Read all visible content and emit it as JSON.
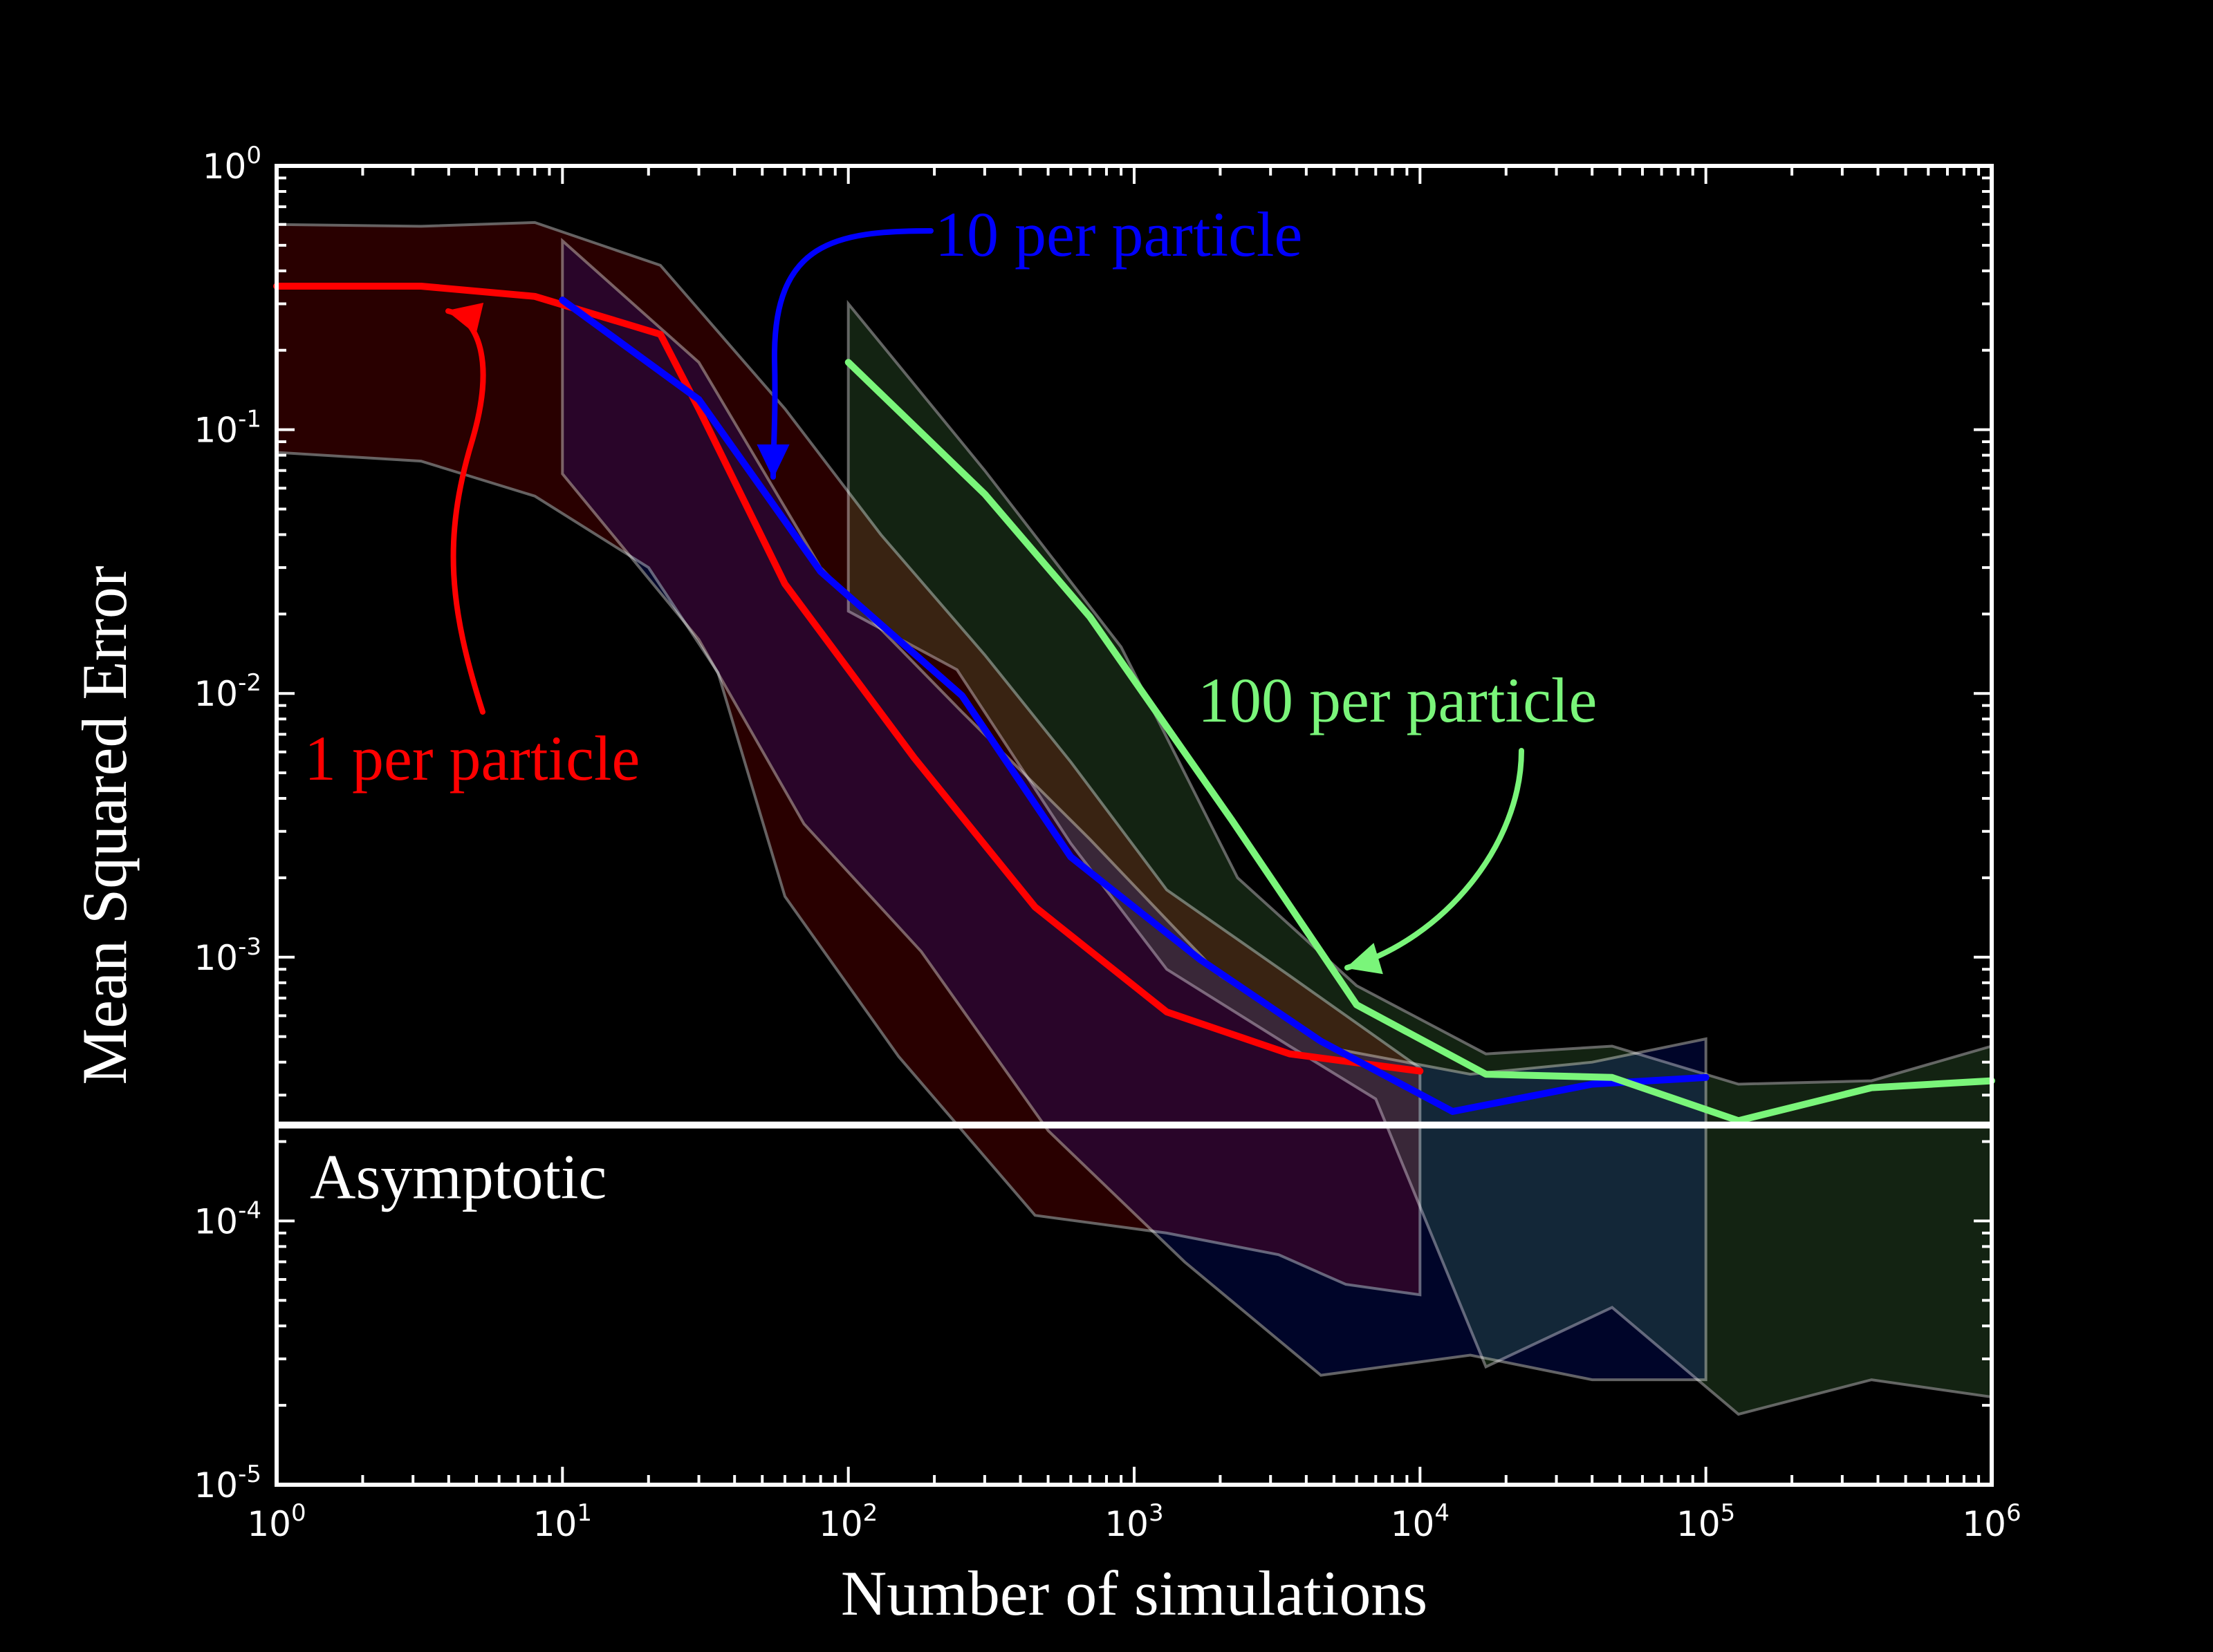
{
  "chart_data": {
    "type": "line",
    "xlabel": "Number of simulations",
    "ylabel": "Mean Squared Error",
    "xscale": "log",
    "yscale": "log",
    "xlim": [
      1,
      1000000
    ],
    "ylim": [
      1e-05,
      1
    ],
    "grid": false,
    "x_ticks": [
      {
        "base": "10",
        "exp": "0",
        "value": 1
      },
      {
        "base": "10",
        "exp": "1",
        "value": 10
      },
      {
        "base": "10",
        "exp": "2",
        "value": 100
      },
      {
        "base": "10",
        "exp": "3",
        "value": 1000
      },
      {
        "base": "10",
        "exp": "4",
        "value": 10000
      },
      {
        "base": "10",
        "exp": "5",
        "value": 100000
      },
      {
        "base": "10",
        "exp": "6",
        "value": 1000000
      }
    ],
    "y_ticks": [
      {
        "base": "10",
        "exp": "0",
        "value": 1
      },
      {
        "base": "10",
        "exp": "-1",
        "value": 0.1
      },
      {
        "base": "10",
        "exp": "-2",
        "value": 0.01
      },
      {
        "base": "10",
        "exp": "-3",
        "value": 0.001
      },
      {
        "base": "10",
        "exp": "-4",
        "value": 0.0001
      },
      {
        "base": "10",
        "exp": "-5",
        "value": 1e-05
      }
    ],
    "colors": {
      "background": "#000000",
      "axes": "#ffffff",
      "band_edge": "#7a7a7a",
      "asymptote": "#ffffff"
    },
    "bands": [
      {
        "series": "1 per particle",
        "fill": "#4a0000",
        "upper": [
          [
            1,
            0.6
          ],
          [
            3.2,
            0.59
          ],
          [
            8,
            0.61
          ],
          [
            22,
            0.42
          ],
          [
            60,
            0.12
          ],
          [
            130,
            0.04
          ],
          [
            300,
            0.014
          ],
          [
            600,
            0.0055
          ],
          [
            1300,
            0.0018
          ],
          [
            3500,
            0.00085
          ],
          [
            7000,
            0.0005
          ],
          [
            10000,
            0.00038
          ]
        ],
        "lower": [
          [
            1,
            0.082
          ],
          [
            3.2,
            0.076
          ],
          [
            8,
            0.056
          ],
          [
            20,
            0.03
          ],
          [
            35,
            0.012
          ],
          [
            60,
            0.0017
          ],
          [
            150,
            0.00042
          ],
          [
            450,
            0.000105
          ],
          [
            1300,
            9e-05
          ],
          [
            3200,
            7.45e-05
          ],
          [
            5500,
            5.75e-05
          ],
          [
            10000,
            5.25e-05
          ]
        ]
      },
      {
        "series": "10 per particle",
        "fill": "#000a4a",
        "upper": [
          [
            10,
            0.52
          ],
          [
            30,
            0.18
          ],
          [
            80,
            0.03
          ],
          [
            250,
            0.0085
          ],
          [
            700,
            0.0028
          ],
          [
            2000,
            0.00085
          ],
          [
            5000,
            0.00045
          ],
          [
            15000,
            0.00036
          ],
          [
            40000,
            0.0004
          ],
          [
            100000,
            0.00049
          ]
        ],
        "lower": [
          [
            10,
            0.068
          ],
          [
            30,
            0.016
          ],
          [
            70,
            0.0032
          ],
          [
            180,
            0.00105
          ],
          [
            500,
            0.00022
          ],
          [
            1500,
            7e-05
          ],
          [
            4500,
            2.6e-05
          ],
          [
            15000,
            3.1e-05
          ],
          [
            40000,
            2.5e-05
          ],
          [
            100000,
            2.5e-05
          ]
        ]
      },
      {
        "series": "100 per particle",
        "fill": "#224020",
        "upper": [
          [
            100,
            0.3
          ],
          [
            300,
            0.07
          ],
          [
            900,
            0.015
          ],
          [
            2300,
            0.002
          ],
          [
            6000,
            0.00078
          ],
          [
            17000,
            0.00043
          ],
          [
            47000,
            0.00046
          ],
          [
            130000,
            0.00033
          ],
          [
            380000,
            0.00034
          ],
          [
            1000000,
            0.00046
          ]
        ],
        "lower": [
          [
            100,
            0.0205
          ],
          [
            240,
            0.0123
          ],
          [
            600,
            0.0027
          ],
          [
            1300,
            0.0009
          ],
          [
            3500,
            0.00046
          ],
          [
            7000,
            0.00029
          ],
          [
            17000,
            2.8e-05
          ],
          [
            47000,
            4.7e-05
          ],
          [
            130000,
            1.85e-05
          ],
          [
            380000,
            2.5e-05
          ],
          [
            1000000,
            2.15e-05
          ]
        ]
      }
    ],
    "series": [
      {
        "name": "1 per particle",
        "color": "#ff0000",
        "x": [
          1,
          3.2,
          8,
          22,
          30,
          60,
          170,
          450,
          1300,
          3500,
          10000
        ],
        "y": [
          0.35,
          0.35,
          0.32,
          0.23,
          0.12,
          0.026,
          0.0057,
          0.00155,
          0.00062,
          0.00043,
          0.00037
        ]
      },
      {
        "name": "10 per particle",
        "color": "#0000ff",
        "x": [
          10,
          30,
          80,
          250,
          600,
          1700,
          4500,
          13000,
          40000,
          100000
        ],
        "y": [
          0.31,
          0.13,
          0.029,
          0.0098,
          0.0024,
          0.00098,
          0.00048,
          0.00026,
          0.00033,
          0.00035
        ]
      },
      {
        "name": "100 per particle",
        "color": "#7af57a",
        "x": [
          100,
          300,
          700,
          2200,
          6000,
          17000,
          47000,
          130000,
          380000,
          1000000
        ],
        "y": [
          0.18,
          0.057,
          0.0195,
          0.0033,
          0.00066,
          0.00036,
          0.00035,
          0.00024,
          0.00032,
          0.00034
        ]
      }
    ],
    "asymptote": {
      "label": "Asymptotic",
      "y": 0.000231
    },
    "annotations": [
      {
        "text": "1 per particle",
        "color": "#ff0000"
      },
      {
        "text": "10 per particle",
        "color": "#0000ff"
      },
      {
        "text": "100 per particle",
        "color": "#7af57a"
      }
    ]
  }
}
